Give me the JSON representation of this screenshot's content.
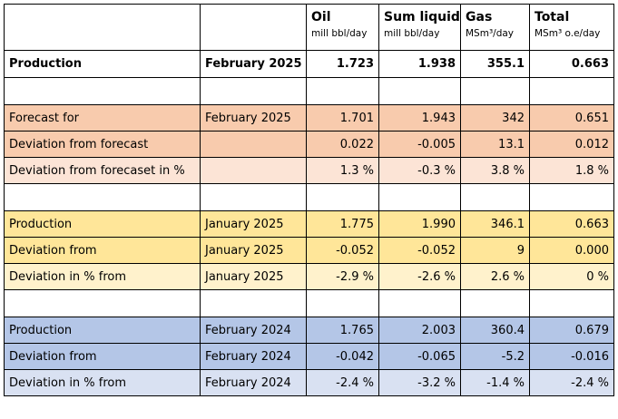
{
  "headers": [
    {
      "name": "",
      "unit": ""
    },
    {
      "name": "",
      "unit": ""
    },
    {
      "name": "Oil",
      "unit": "mill bbl/day"
    },
    {
      "name": "Sum liquid",
      "unit": "mill bbl/day"
    },
    {
      "name": "Gas",
      "unit": "MSm³/day"
    },
    {
      "name": "Total",
      "unit": "MSm³ o.e/day"
    }
  ],
  "production": {
    "label": "Production",
    "period": "February 2025",
    "oil": "1.723",
    "liquid": "1.938",
    "gas": "355.1",
    "total": "0.663"
  },
  "forecast": [
    {
      "label": "Forecast for",
      "period": "February 2025",
      "oil": "1.701",
      "liquid": "1.943",
      "gas": "342",
      "total": "0.651"
    },
    {
      "label": "Deviation from forecast",
      "period": "",
      "oil": "0.022",
      "liquid": "-0.005",
      "gas": "13.1",
      "total": "0.012"
    },
    {
      "label": "Deviation from forecaset in %",
      "period": "",
      "oil": "1.3 %",
      "liquid": "-0.3 %",
      "gas": "3.8 %",
      "total": "1.8 %"
    }
  ],
  "previous_month": [
    {
      "label": "Production",
      "period": "January 2025",
      "oil": "1.775",
      "liquid": "1.990",
      "gas": "346.1",
      "total": "0.663"
    },
    {
      "label": "Deviation from",
      "period": "January 2025",
      "oil": "-0.052",
      "liquid": "-0.052",
      "gas": "9",
      "total": "0.000"
    },
    {
      "label": "Deviation in % from",
      "period": "January 2025",
      "oil": "-2.9 %",
      "liquid": "-2.6 %",
      "gas": "2.6 %",
      "total": "0 %"
    }
  ],
  "previous_year": [
    {
      "label": "Production",
      "period": "February 2024",
      "oil": "1.765",
      "liquid": "2.003",
      "gas": "360.4",
      "total": "0.679"
    },
    {
      "label": "Deviation from",
      "period": "February 2024",
      "oil": "-0.042",
      "liquid": "-0.065",
      "gas": "-5.2",
      "total": "-0.016"
    },
    {
      "label": "Deviation in % from",
      "period": "February 2024",
      "oil": "-2.4 %",
      "liquid": "-3.2 %",
      "gas": "-1.4 %",
      "total": "-2.4 %"
    }
  ],
  "colors": {
    "forecast_dark": "#f8cbad",
    "forecast_light": "#fce4d6",
    "month_dark": "#ffe699",
    "month_light": "#fff2cc",
    "year_dark": "#b4c6e7",
    "year_light": "#d9e1f2"
  }
}
